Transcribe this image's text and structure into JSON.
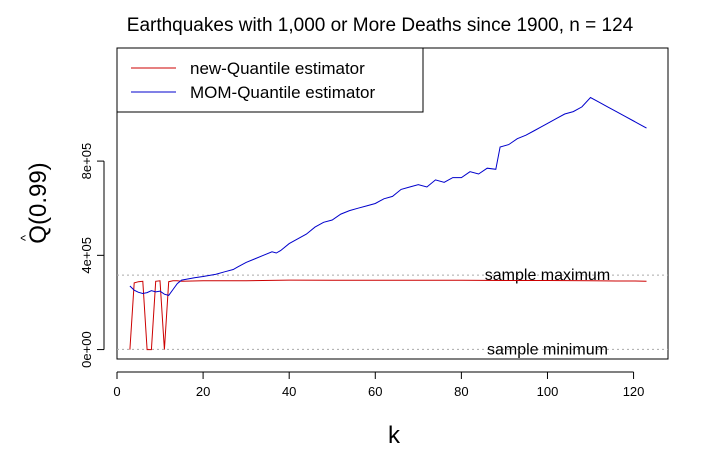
{
  "chart_data": {
    "type": "line",
    "title": "Earthquakes with 1,000 or More Deaths since 1900, n = 124",
    "xlabel": "k",
    "ylabel_hat": "^",
    "ylabel": "Q(0.99)",
    "xlim": [
      0,
      128
    ],
    "ylim": [
      -40000,
      1280000
    ],
    "xticks": [
      0,
      20,
      40,
      60,
      80,
      100,
      120
    ],
    "xtick_labels": [
      "0",
      "20",
      "40",
      "60",
      "80",
      "100",
      "120"
    ],
    "yticks": [
      0,
      400000,
      800000
    ],
    "ytick_labels": [
      "0e+00",
      "4e+05",
      "8e+05"
    ],
    "legend": {
      "position": "top-left",
      "entries": [
        {
          "name": "new-Quantile estimator",
          "color": "#cc0000"
        },
        {
          "name": "MOM-Quantile estimator",
          "color": "#0000cc"
        }
      ]
    },
    "reference_lines": [
      {
        "name": "sample maximum",
        "y": 316000,
        "color": "#aaaaaa"
      },
      {
        "name": "sample minimum",
        "y": 1000,
        "color": "#aaaaaa"
      }
    ],
    "series": [
      {
        "name": "new-Quantile estimator",
        "color": "#cc0000",
        "points": [
          [
            3,
            0
          ],
          [
            4,
            283000
          ],
          [
            5,
            288000
          ],
          [
            6,
            290000
          ],
          [
            7,
            0
          ],
          [
            8,
            0
          ],
          [
            9,
            290000
          ],
          [
            10,
            292000
          ],
          [
            11,
            0
          ],
          [
            12,
            288000
          ],
          [
            13,
            292000
          ],
          [
            14,
            292000
          ],
          [
            15,
            290000
          ],
          [
            20,
            292000
          ],
          [
            30,
            292000
          ],
          [
            40,
            295000
          ],
          [
            50,
            294000
          ],
          [
            60,
            294000
          ],
          [
            70,
            294000
          ],
          [
            80,
            294000
          ],
          [
            90,
            293000
          ],
          [
            100,
            293000
          ],
          [
            110,
            292000
          ],
          [
            116,
            291000
          ],
          [
            120,
            291000
          ],
          [
            123,
            290000
          ]
        ]
      },
      {
        "name": "MOM-Quantile estimator",
        "color": "#0000cc",
        "points": [
          [
            3,
            270000
          ],
          [
            4,
            252000
          ],
          [
            5,
            243000
          ],
          [
            6,
            238000
          ],
          [
            7,
            242000
          ],
          [
            8,
            250000
          ],
          [
            9,
            245000
          ],
          [
            10,
            248000
          ],
          [
            11,
            235000
          ],
          [
            12,
            230000
          ],
          [
            13,
            255000
          ],
          [
            14,
            280000
          ],
          [
            15,
            295000
          ],
          [
            18,
            305000
          ],
          [
            20,
            310000
          ],
          [
            23,
            320000
          ],
          [
            25,
            330000
          ],
          [
            27,
            340000
          ],
          [
            28,
            350000
          ],
          [
            30,
            370000
          ],
          [
            32,
            385000
          ],
          [
            34,
            400000
          ],
          [
            36,
            415000
          ],
          [
            37,
            410000
          ],
          [
            38,
            420000
          ],
          [
            40,
            450000
          ],
          [
            42,
            470000
          ],
          [
            44,
            490000
          ],
          [
            46,
            520000
          ],
          [
            48,
            540000
          ],
          [
            50,
            550000
          ],
          [
            52,
            575000
          ],
          [
            54,
            590000
          ],
          [
            56,
            600000
          ],
          [
            58,
            610000
          ],
          [
            60,
            620000
          ],
          [
            62,
            640000
          ],
          [
            64,
            650000
          ],
          [
            66,
            680000
          ],
          [
            68,
            690000
          ],
          [
            70,
            700000
          ],
          [
            72,
            690000
          ],
          [
            74,
            720000
          ],
          [
            76,
            710000
          ],
          [
            78,
            730000
          ],
          [
            80,
            730000
          ],
          [
            82,
            755000
          ],
          [
            84,
            745000
          ],
          [
            86,
            770000
          ],
          [
            88,
            765000
          ],
          [
            89,
            860000
          ],
          [
            91,
            870000
          ],
          [
            93,
            895000
          ],
          [
            95,
            910000
          ],
          [
            97,
            930000
          ],
          [
            100,
            960000
          ],
          [
            102,
            980000
          ],
          [
            104,
            1000000
          ],
          [
            106,
            1010000
          ],
          [
            108,
            1030000
          ],
          [
            110,
            1070000
          ],
          [
            112,
            1050000
          ],
          [
            114,
            1030000
          ],
          [
            116,
            1010000
          ],
          [
            118,
            990000
          ],
          [
            120,
            970000
          ],
          [
            123,
            940000
          ]
        ]
      }
    ]
  }
}
